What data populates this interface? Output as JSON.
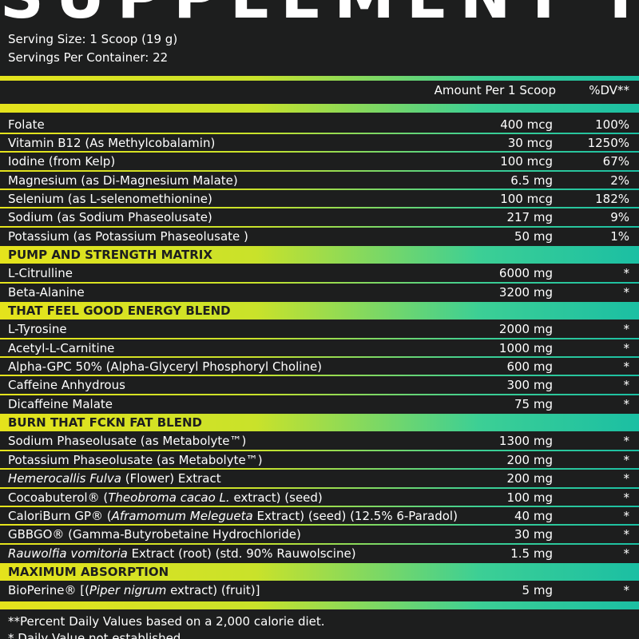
{
  "title": "SUPPLEMENT FACTS",
  "serving_size": "Serving Size: 1 Scoop (19 g)",
  "servings": "Servings Per Container: 22",
  "columns": [
    "Amount Per 1 Scoop",
    "%DV**"
  ],
  "rows": [
    {
      "name": [
        {
          "text": "Folate"
        }
      ],
      "amount": "400 mcg",
      "dv": "100%"
    },
    {
      "name": [
        {
          "text": "Vitamin B12 (As Methylcobalamin)"
        }
      ],
      "amount": "30 mcg",
      "dv": "1250%"
    },
    {
      "name": [
        {
          "text": "Iodine (from Kelp)"
        }
      ],
      "amount": "100 mcg",
      "dv": "67%"
    },
    {
      "name": [
        {
          "text": "Magnesium (as Di-Magnesium Malate)"
        }
      ],
      "amount": "6.5 mg",
      "dv": "2%"
    },
    {
      "name": [
        {
          "text": "Selenium (as L-selenomethionine)"
        }
      ],
      "amount": "100 mcg",
      "dv": "182%"
    },
    {
      "name": [
        {
          "text": "Sodium (as Sodium Phaseolusate)"
        }
      ],
      "amount": "217 mg",
      "dv": "9%"
    },
    {
      "name": [
        {
          "text": "Potassium (as Potassium Phaseolusate )"
        }
      ],
      "amount": "50 mg",
      "dv": "1%"
    },
    {
      "section": "PUMP AND STRENGTH MATRIX"
    },
    {
      "name": [
        {
          "text": "L-Citrulline"
        }
      ],
      "amount": "6000 mg",
      "dv": "*"
    },
    {
      "name": [
        {
          "text": "Beta-Alanine"
        }
      ],
      "amount": "3200 mg",
      "dv": "*"
    },
    {
      "section": "THAT FEEL GOOD ENERGY BLEND"
    },
    {
      "name": [
        {
          "text": "L-Tyrosine"
        }
      ],
      "amount": "2000 mg",
      "dv": "*"
    },
    {
      "name": [
        {
          "text": "Acetyl-L-Carnitine"
        }
      ],
      "amount": "1000 mg",
      "dv": "*"
    },
    {
      "name": [
        {
          "text": "Alpha-GPC 50% (Alpha-Glyceryl Phosphoryl Choline)"
        }
      ],
      "amount": "600 mg",
      "dv": "*"
    },
    {
      "name": [
        {
          "text": "Caffeine Anhydrous"
        }
      ],
      "amount": "300 mg",
      "dv": "*"
    },
    {
      "name": [
        {
          "text": "Dicaffeine Malate"
        }
      ],
      "amount": "75 mg",
      "dv": "*"
    },
    {
      "section": "BURN THAT FCKN FAT BLEND"
    },
    {
      "name": [
        {
          "text": "Sodium Phaseolusate (as Metabolyte™)"
        }
      ],
      "amount": "1300 mg",
      "dv": "*"
    },
    {
      "name": [
        {
          "text": "Potassium Phaseolusate (as Metabolyte™)"
        }
      ],
      "amount": "200 mg",
      "dv": "*"
    },
    {
      "name": [
        {
          "text": "Hemerocallis Fulva",
          "italic": true
        },
        {
          "text": " (Flower) Extract"
        }
      ],
      "amount": "200 mg",
      "dv": "*"
    },
    {
      "name": [
        {
          "text": "Cocoabuterol® ("
        },
        {
          "text": "Theobroma cacao L.",
          "italic": true
        },
        {
          "text": " extract) (seed)"
        }
      ],
      "amount": "100 mg",
      "dv": "*"
    },
    {
      "name": [
        {
          "text": "CaloriBurn GP® ("
        },
        {
          "text": "Aframomum Melegueta",
          "italic": true
        },
        {
          "text": " Extract) (seed) (12.5% 6-Paradol)"
        }
      ],
      "amount": "40 mg",
      "dv": "*"
    },
    {
      "name": [
        {
          "text": "GBBGO® (Gamma-Butyrobetaine Hydrochloride)"
        }
      ],
      "amount": "30 mg",
      "dv": "*"
    },
    {
      "name": [
        {
          "text": "Rauwolfia vomitoria",
          "italic": true
        },
        {
          "text": " Extract (root) (std. 90% Rauwolscine)"
        }
      ],
      "amount": "1.5 mg",
      "dv": "*"
    },
    {
      "section": "MAXIMUM ABSORPTION"
    },
    {
      "name": [
        {
          "text": "BioPerine® [("
        },
        {
          "text": "Piper nigrum",
          "italic": true
        },
        {
          "text": " extract) (fruit)]"
        }
      ],
      "amount": "5 mg",
      "dv": "*"
    }
  ],
  "footnotes": [
    "**Percent Daily Values based on a 2,000 calorie diet.",
    "* Daily Value not established."
  ]
}
